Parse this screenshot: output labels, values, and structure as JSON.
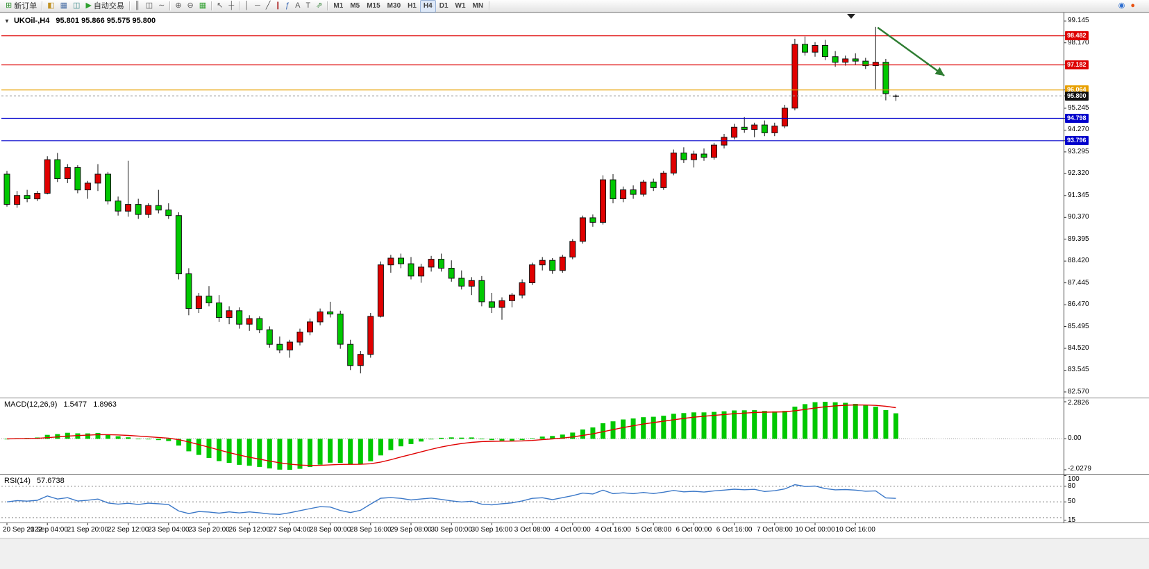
{
  "toolbar": {
    "items": [
      {
        "t": "btn",
        "name": "new-order-button",
        "glyph": "⊞",
        "color": "#2f8f2f",
        "label": "新订单"
      },
      {
        "t": "sep"
      },
      {
        "t": "btn",
        "name": "profiles-button",
        "glyph": "◧",
        "color": "#c09020"
      },
      {
        "t": "btn",
        "name": "charts-window-button",
        "glyph": "▦",
        "color": "#4a6fa5"
      },
      {
        "t": "btn",
        "name": "market-watch-button",
        "glyph": "◫",
        "color": "#3a8a8a"
      },
      {
        "t": "btn",
        "name": "auto-trading-button",
        "glyph": "▶",
        "color": "#2fa02f",
        "label": "自动交易"
      },
      {
        "t": "sep"
      },
      {
        "t": "btn",
        "name": "bar-chart-type-button",
        "glyph": "║"
      },
      {
        "t": "btn",
        "name": "candlestick-type-button",
        "glyph": "◫"
      },
      {
        "t": "btn",
        "name": "line-chart-type-button",
        "glyph": "∼"
      },
      {
        "t": "sep"
      },
      {
        "t": "btn",
        "name": "zoom-in-button",
        "glyph": "⊕"
      },
      {
        "t": "btn",
        "name": "zoom-out-button",
        "glyph": "⊖"
      },
      {
        "t": "btn",
        "name": "tile-windows-button",
        "glyph": "▦",
        "color": "#2fa02f"
      },
      {
        "t": "sep"
      },
      {
        "t": "btn",
        "name": "cursor-tool-button",
        "glyph": "↖"
      },
      {
        "t": "btn",
        "name": "crosshair-tool-button",
        "glyph": "┼"
      },
      {
        "t": "sep"
      },
      {
        "t": "btn",
        "name": "vertical-line-tool-button",
        "glyph": "│"
      },
      {
        "t": "btn",
        "name": "horizontal-line-tool-button",
        "glyph": "─"
      },
      {
        "t": "btn",
        "name": "trendline-tool-button",
        "glyph": "╱"
      },
      {
        "t": "btn",
        "name": "equidistant-channel-tool-button",
        "glyph": "∥",
        "color": "#b03030"
      },
      {
        "t": "btn",
        "name": "fibonacci-tool-button",
        "glyph": "ƒ",
        "color": "#3060b0"
      },
      {
        "t": "btn",
        "name": "text-tool-button",
        "glyph": "A"
      },
      {
        "t": "btn",
        "name": "text-label-tool-button",
        "glyph": "T"
      },
      {
        "t": "btn",
        "name": "arrows-tool-button",
        "glyph": "⇗",
        "color": "#2e7d32"
      },
      {
        "t": "sep"
      },
      {
        "t": "tf",
        "name": "timeframe-m1-button",
        "label": "M1"
      },
      {
        "t": "tf",
        "name": "timeframe-m5-button",
        "label": "M5"
      },
      {
        "t": "tf",
        "name": "timeframe-m15-button",
        "label": "M15"
      },
      {
        "t": "tf",
        "name": "timeframe-m30-button",
        "label": "M30"
      },
      {
        "t": "tf",
        "name": "timeframe-h1-button",
        "label": "H1"
      },
      {
        "t": "tf",
        "name": "timeframe-h4-button",
        "label": "H4",
        "active": true
      },
      {
        "t": "tf",
        "name": "timeframe-d1-button",
        "label": "D1"
      },
      {
        "t": "tf",
        "name": "timeframe-w1-button",
        "label": "W1"
      },
      {
        "t": "tf",
        "name": "timeframe-mn-button",
        "label": "MN"
      },
      {
        "t": "sep"
      },
      {
        "t": "spacer"
      },
      {
        "t": "btn",
        "name": "search-button",
        "glyph": "◉",
        "color": "#2f6fd0"
      },
      {
        "t": "btn",
        "name": "notifications-button",
        "glyph": "●",
        "color": "#e85212"
      }
    ]
  },
  "chart": {
    "collapse_icon": "▼",
    "symbol_title": "UKOil-,H4",
    "ohlc": "95.801 95.866 95.575 95.800"
  },
  "indicators": {
    "macd": {
      "label": "MACD(12,26,9)",
      "value_main": "1.5477",
      "value_signal": "1.8963",
      "axis_max": "2.2826",
      "axis_zero": "0.00",
      "axis_min": "-2.0279"
    },
    "rsi": {
      "label": "RSI(14)",
      "value": "57.6738",
      "axis_labels": [
        "100",
        "80",
        "50",
        "15"
      ],
      "levels": [
        80,
        50,
        20
      ]
    }
  },
  "price_axis": {
    "ticks": [
      "99.145",
      "98.170",
      "95.245",
      "94.270",
      "93.295",
      "92.320",
      "91.345",
      "90.370",
      "89.395",
      "88.420",
      "87.445",
      "86.470",
      "85.495",
      "84.520",
      "83.545",
      "82.570"
    ],
    "tags": [
      {
        "label": "98.482",
        "value": 98.482,
        "color": "#dd0000"
      },
      {
        "label": "97.182",
        "value": 97.182,
        "color": "#dd0000"
      },
      {
        "label": "96.064",
        "value": 96.064,
        "color": "#e8a000"
      },
      {
        "label": "95.800",
        "value": 95.8,
        "color": "#111111",
        "kind": "current"
      },
      {
        "label": "94.798",
        "value": 94.798,
        "color": "#0000cc"
      },
      {
        "label": "93.796",
        "value": 93.796,
        "color": "#0000cc"
      }
    ]
  },
  "time_axis": {
    "step": 4,
    "labels": [
      "20 Sep 2022",
      "21 Sep 04:00",
      "21 Sep 20:00",
      "22 Sep 12:00",
      "23 Sep 04:00",
      "23 Sep 20:00",
      "26 Sep 12:00",
      "27 Sep 04:00",
      "28 Sep 00:00",
      "28 Sep 16:00",
      "29 Sep 08:00",
      "30 Sep 00:00",
      "30 Sep 16:00",
      "3 Oct 08:00",
      "4 Oct 00:00",
      "4 Oct 16:00",
      "5 Oct 08:00",
      "6 Oct 00:00",
      "6 Oct 16:00",
      "7 Oct 08:00",
      "10 Oct 00:00",
      "10 Oct 16:00"
    ]
  },
  "chart_data": {
    "type": "candlestick",
    "symbol": "UKOil-",
    "timeframe": "H4",
    "y_range": [
      82.35,
      99.4
    ],
    "candles": [
      [
        92.3,
        92.45,
        90.85,
        90.95
      ],
      [
        90.95,
        91.55,
        90.8,
        91.35
      ],
      [
        91.35,
        91.6,
        91.05,
        91.2
      ],
      [
        91.2,
        91.55,
        91.1,
        91.45
      ],
      [
        91.45,
        93.1,
        91.4,
        92.95
      ],
      [
        92.95,
        93.25,
        91.95,
        92.1
      ],
      [
        92.1,
        92.75,
        91.9,
        92.6
      ],
      [
        92.6,
        92.7,
        91.45,
        91.6
      ],
      [
        91.6,
        92.0,
        91.2,
        91.9
      ],
      [
        91.9,
        92.75,
        91.55,
        92.3
      ],
      [
        92.3,
        92.4,
        90.95,
        91.1
      ],
      [
        91.1,
        91.3,
        90.45,
        90.65
      ],
      [
        90.65,
        92.9,
        90.4,
        90.95
      ],
      [
        90.95,
        91.2,
        90.3,
        90.5
      ],
      [
        90.5,
        91.0,
        90.35,
        90.9
      ],
      [
        90.9,
        91.6,
        90.55,
        90.7
      ],
      [
        90.7,
        91.0,
        90.3,
        90.45
      ],
      [
        90.45,
        90.6,
        87.6,
        87.85
      ],
      [
        87.85,
        88.1,
        86.0,
        86.3
      ],
      [
        86.3,
        87.0,
        86.1,
        86.85
      ],
      [
        86.85,
        87.3,
        86.4,
        86.55
      ],
      [
        86.55,
        86.9,
        85.7,
        85.9
      ],
      [
        85.9,
        86.4,
        85.6,
        86.2
      ],
      [
        86.2,
        86.35,
        85.4,
        85.6
      ],
      [
        85.6,
        86.0,
        85.3,
        85.85
      ],
      [
        85.85,
        85.95,
        85.2,
        85.35
      ],
      [
        85.35,
        85.5,
        84.55,
        84.7
      ],
      [
        84.7,
        85.05,
        84.3,
        84.45
      ],
      [
        84.45,
        84.9,
        84.1,
        84.8
      ],
      [
        84.8,
        85.4,
        84.65,
        85.25
      ],
      [
        85.25,
        85.85,
        85.1,
        85.7
      ],
      [
        85.7,
        86.3,
        85.55,
        86.15
      ],
      [
        86.15,
        86.6,
        85.9,
        86.05
      ],
      [
        86.05,
        86.2,
        84.5,
        84.7
      ],
      [
        84.7,
        84.9,
        83.55,
        83.75
      ],
      [
        83.75,
        84.4,
        83.4,
        84.25
      ],
      [
        84.25,
        86.1,
        84.1,
        85.95
      ],
      [
        85.95,
        88.4,
        85.9,
        88.25
      ],
      [
        88.25,
        88.7,
        87.9,
        88.55
      ],
      [
        88.55,
        88.75,
        88.1,
        88.3
      ],
      [
        88.3,
        88.6,
        87.6,
        87.75
      ],
      [
        87.75,
        88.3,
        87.45,
        88.15
      ],
      [
        88.15,
        88.65,
        87.95,
        88.5
      ],
      [
        88.5,
        88.75,
        87.95,
        88.1
      ],
      [
        88.1,
        88.45,
        87.5,
        87.65
      ],
      [
        87.65,
        88.0,
        87.15,
        87.3
      ],
      [
        87.3,
        87.7,
        86.9,
        87.55
      ],
      [
        87.55,
        87.75,
        86.4,
        86.6
      ],
      [
        86.6,
        87.0,
        86.1,
        86.35
      ],
      [
        86.35,
        86.8,
        85.8,
        86.65
      ],
      [
        86.65,
        87.0,
        86.35,
        86.9
      ],
      [
        86.9,
        87.6,
        86.75,
        87.45
      ],
      [
        87.45,
        88.35,
        87.35,
        88.25
      ],
      [
        88.25,
        88.6,
        88.0,
        88.45
      ],
      [
        88.45,
        88.55,
        87.85,
        88.0
      ],
      [
        88.0,
        88.7,
        87.9,
        88.6
      ],
      [
        88.6,
        89.4,
        88.5,
        89.3
      ],
      [
        89.3,
        90.45,
        89.2,
        90.35
      ],
      [
        90.35,
        90.5,
        89.95,
        90.15
      ],
      [
        90.15,
        92.25,
        90.05,
        92.05
      ],
      [
        92.05,
        92.3,
        91.0,
        91.2
      ],
      [
        91.2,
        91.75,
        91.05,
        91.6
      ],
      [
        91.6,
        91.8,
        91.2,
        91.4
      ],
      [
        91.4,
        92.05,
        91.3,
        91.95
      ],
      [
        91.95,
        92.1,
        91.55,
        91.7
      ],
      [
        91.7,
        92.45,
        91.6,
        92.35
      ],
      [
        92.35,
        93.4,
        92.25,
        93.25
      ],
      [
        93.25,
        93.5,
        92.8,
        92.95
      ],
      [
        92.95,
        93.35,
        92.6,
        93.2
      ],
      [
        93.2,
        93.45,
        92.9,
        93.05
      ],
      [
        93.05,
        93.7,
        92.95,
        93.6
      ],
      [
        93.6,
        94.1,
        93.45,
        93.95
      ],
      [
        93.95,
        94.55,
        93.85,
        94.4
      ],
      [
        94.4,
        94.85,
        94.15,
        94.3
      ],
      [
        94.3,
        94.6,
        93.95,
        94.5
      ],
      [
        94.5,
        94.7,
        94.0,
        94.15
      ],
      [
        94.15,
        94.6,
        94.0,
        94.45
      ],
      [
        94.45,
        95.4,
        94.35,
        95.25
      ],
      [
        95.25,
        98.35,
        95.15,
        98.1
      ],
      [
        98.1,
        98.45,
        97.6,
        97.75
      ],
      [
        97.75,
        98.2,
        97.55,
        98.05
      ],
      [
        98.05,
        98.3,
        97.4,
        97.55
      ],
      [
        97.55,
        97.8,
        97.1,
        97.3
      ],
      [
        97.3,
        97.6,
        97.15,
        97.45
      ],
      [
        97.45,
        97.7,
        97.2,
        97.35
      ],
      [
        97.35,
        97.5,
        97.0,
        97.15
      ],
      [
        97.15,
        98.88,
        96.1,
        97.3
      ],
      [
        97.3,
        97.45,
        95.6,
        95.9
      ],
      [
        95.801,
        95.866,
        95.575,
        95.8
      ]
    ],
    "horizontal_lines": [
      {
        "value": 98.482,
        "color": "#dd0000"
      },
      {
        "value": 97.182,
        "color": "#dd0000"
      },
      {
        "value": 96.064,
        "color": "#e8a000"
      },
      {
        "value": 94.798,
        "color": "#0000cc"
      },
      {
        "value": 93.796,
        "color": "#0000cc"
      }
    ],
    "current_price": 95.8,
    "indicators": [
      {
        "type": "MACD",
        "fast": 12,
        "slow": 26,
        "signal": 9,
        "current": [
          1.5477,
          1.8963
        ]
      },
      {
        "type": "RSI",
        "period": 14,
        "current": 57.6738
      }
    ],
    "trend_arrow": {
      "from_index": 86.2,
      "from_price": 98.85,
      "to_index": 92.8,
      "to_price": 96.7,
      "color": "#2e7d32"
    }
  },
  "colors": {
    "bull": "#e00000",
    "bear": "#00c800",
    "macd_hist": "#00c800",
    "macd_signal": "#e00000",
    "rsi_line": "#3b78c8",
    "background": "#ffffff"
  }
}
